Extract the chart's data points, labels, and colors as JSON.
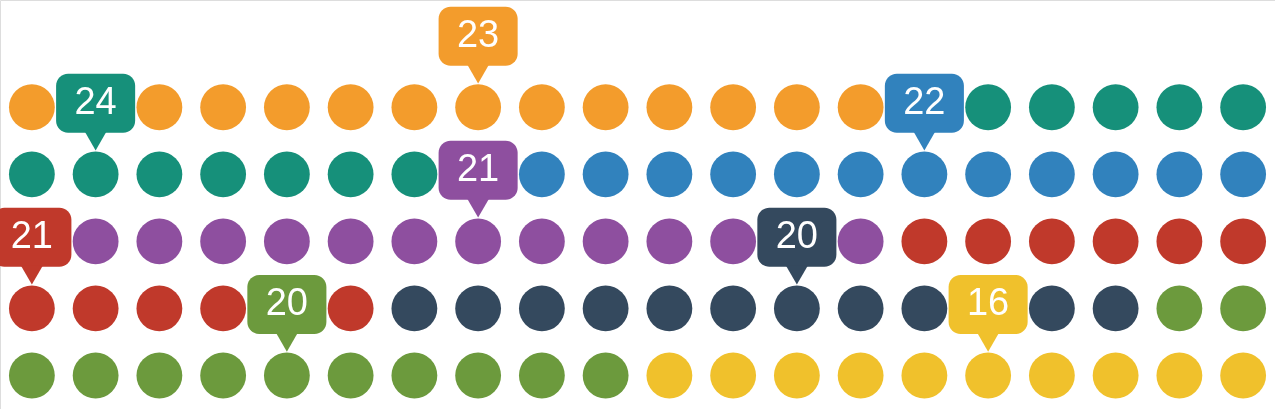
{
  "chart_data": {
    "type": "other",
    "data_labels": true,
    "categories": [
      null,
      null,
      null,
      null,
      null,
      null,
      null,
      null
    ],
    "values": [
      23,
      24,
      22,
      21,
      21,
      20,
      20,
      16
    ],
    "colors": [
      "#f39c2c",
      "#16907a",
      "#3182bd",
      "#8e4f9f",
      "#c0392b",
      "#34495e",
      "#6c9a3d",
      "#f0c12c"
    ]
  }
}
